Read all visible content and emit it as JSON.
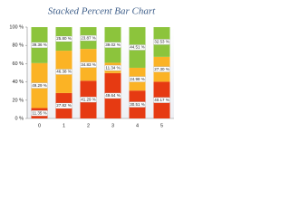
{
  "chart_data": {
    "type": "stacked_percent_bar",
    "title": "Stacked Percent Bar Chart",
    "categories": [
      "0",
      "1",
      "2",
      "3",
      "4",
      "5"
    ],
    "series": [
      {
        "color": "#e63a12",
        "values": [
          11.35,
          27.82,
          41.29,
          49.64,
          30.51,
          40.17
        ],
        "value_labels": [
          "11.35 %",
          "27.82 %",
          "41.29 %",
          "49.64 %",
          "30.51 %",
          "40.17 %"
        ]
      },
      {
        "color": "#fbb325",
        "values": [
          49.29,
          46.38,
          34.83,
          11.34,
          24.98,
          27.3
        ],
        "value_labels": [
          "49.29 %",
          "46.38 %",
          "34.83 %",
          "11.34 %",
          "24.98 %",
          "27.30 %"
        ]
      },
      {
        "color": "#8cc43c",
        "values": [
          39.36,
          25.8,
          23.87,
          39.02,
          44.51,
          32.53
        ],
        "value_labels": [
          "39.36 %",
          "25.80 %",
          "23.87 %",
          "39.02 %",
          "44.51 %",
          "32.53 %"
        ]
      }
    ],
    "ylim": [
      0,
      100
    ],
    "yticks": [
      {
        "value": 0,
        "label": "0 %"
      },
      {
        "value": 20,
        "label": "20 %"
      },
      {
        "value": 40,
        "label": "40 %"
      },
      {
        "value": 60,
        "label": "60 %"
      },
      {
        "value": 80,
        "label": "80 %"
      },
      {
        "value": 100,
        "label": "100 %"
      }
    ]
  }
}
